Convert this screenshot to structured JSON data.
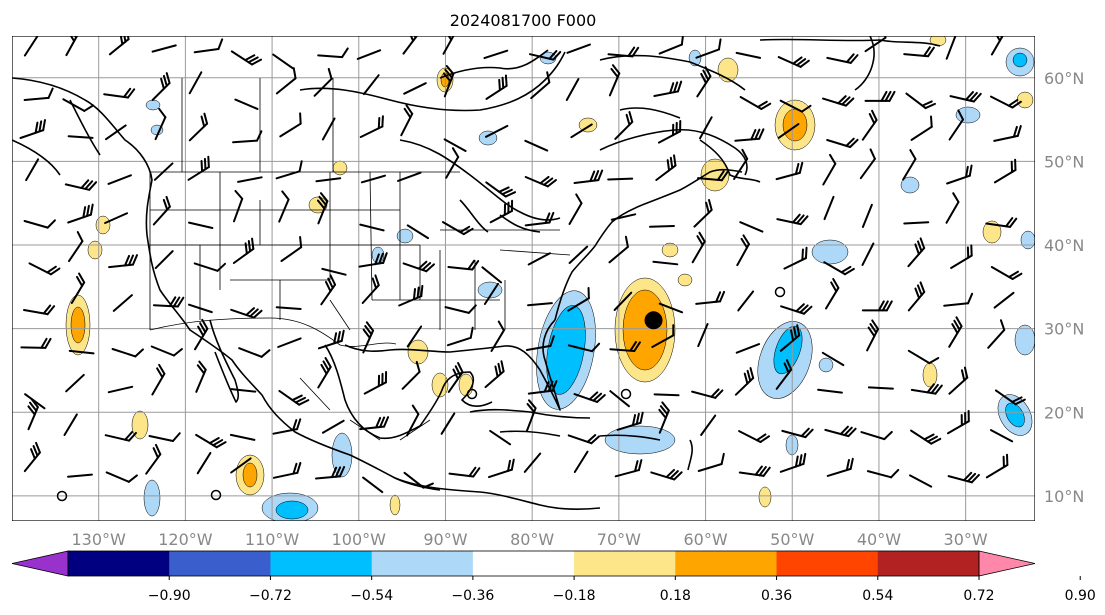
{
  "title": "2024081700 F000",
  "map": {
    "projection": "PlateCarree",
    "lon_range": [
      -140,
      -22
    ],
    "lat_range": [
      7,
      65
    ],
    "lon_ticks": [
      {
        "lon": -130,
        "label": "130°W"
      },
      {
        "lon": -120,
        "label": "120°W"
      },
      {
        "lon": -110,
        "label": "110°W"
      },
      {
        "lon": -100,
        "label": "100°W"
      },
      {
        "lon": -90,
        "label": "90°W"
      },
      {
        "lon": -80,
        "label": "80°W"
      },
      {
        "lon": -70,
        "label": "70°W"
      },
      {
        "lon": -60,
        "label": "60°W"
      },
      {
        "lon": -50,
        "label": "50°W"
      },
      {
        "lon": -40,
        "label": "40°W"
      },
      {
        "lon": -30,
        "label": "30°W"
      }
    ],
    "lat_ticks": [
      {
        "lat": 60,
        "label": "60°N"
      },
      {
        "lat": 50,
        "label": "50°N"
      },
      {
        "lat": 40,
        "label": "40°N"
      },
      {
        "lat": 30,
        "label": "30°N"
      },
      {
        "lat": 20,
        "label": "20°N"
      },
      {
        "lat": 10,
        "label": "10°N"
      }
    ],
    "gridlines": true,
    "marker": {
      "lon": -66,
      "lat": 31,
      "color": "#000000"
    }
  },
  "colorbar": {
    "orientation": "horizontal",
    "extend": "both",
    "colors": [
      "#9932cc",
      "#000080",
      "#3a5fcd",
      "#00bfff",
      "#add8f7",
      "#ffffff",
      "#fde68a",
      "#ffa500",
      "#ff4500",
      "#b22222",
      "#ff88aa"
    ],
    "ticks": [
      "−0.90",
      "−0.72",
      "−0.54",
      "−0.36",
      "−0.18",
      "0.18",
      "0.36",
      "0.54",
      "0.72",
      "0.90"
    ]
  },
  "field_colors": {
    "light_blue": "#add8f7",
    "blue": "#00bfff",
    "yellow": "#fde68a",
    "orange": "#ffa500"
  }
}
